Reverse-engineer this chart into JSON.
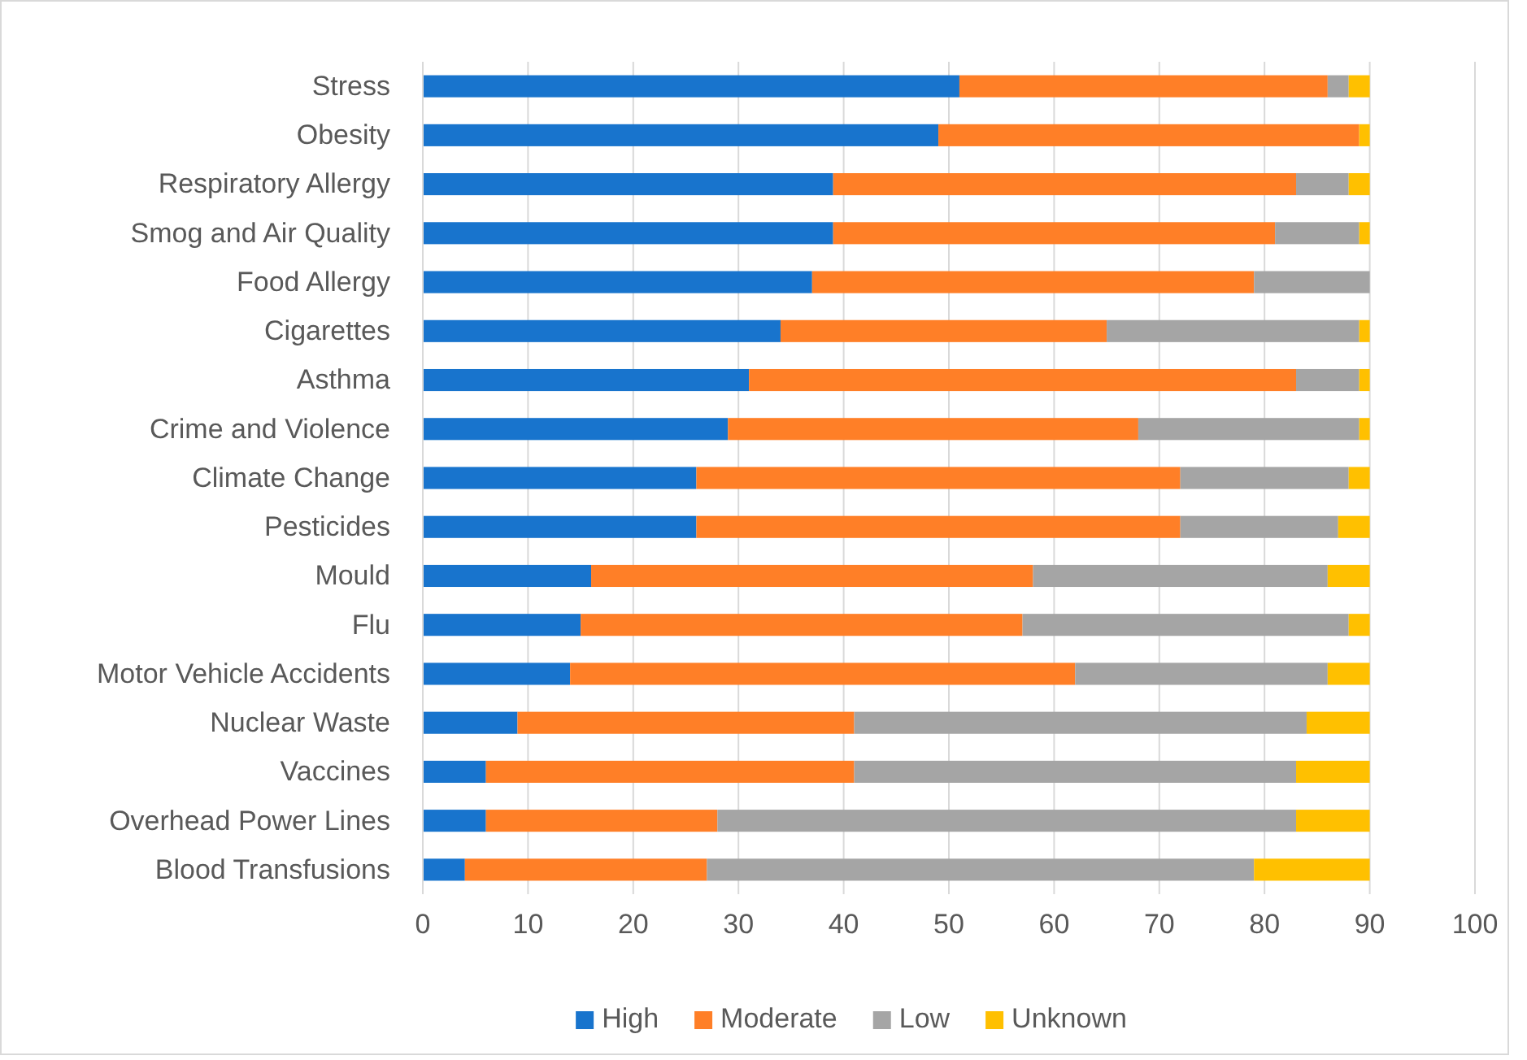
{
  "chart_data": {
    "type": "bar",
    "orientation": "horizontal",
    "stacked": true,
    "categories": [
      "Stress",
      "Obesity",
      "Respiratory Allergy",
      "Smog and Air Quality",
      "Food Allergy",
      "Cigarettes",
      "Asthma",
      "Crime and Violence",
      "Climate Change",
      "Pesticides ",
      "Mould",
      "Flu",
      "Motor Vehicle Accidents",
      "Nuclear Waste",
      "Vaccines",
      "Overhead Power Lines",
      "Blood Transfusions"
    ],
    "series": [
      {
        "name": "High",
        "color": "#1874cd",
        "values": [
          51,
          49,
          39,
          39,
          37,
          34,
          31,
          29,
          26,
          26,
          16,
          15,
          14,
          9,
          6,
          6,
          4
        ]
      },
      {
        "name": "Moderate",
        "color": "#ff7f27",
        "values": [
          35,
          40,
          44,
          42,
          42,
          31,
          52,
          39,
          46,
          46,
          42,
          42,
          48,
          32,
          35,
          22,
          23
        ]
      },
      {
        "name": "Low",
        "color": "#a5a5a5",
        "values": [
          2,
          0,
          5,
          8,
          11,
          24,
          6,
          21,
          16,
          15,
          28,
          31,
          24,
          43,
          42,
          55,
          52
        ]
      },
      {
        "name": "Unknown",
        "color": "#ffc000",
        "values": [
          2,
          1,
          2,
          1,
          0,
          1,
          1,
          1,
          2,
          3,
          4,
          2,
          4,
          6,
          7,
          7,
          11
        ]
      }
    ],
    "xlim": [
      0,
      100
    ],
    "xticks": [
      0,
      10,
      20,
      30,
      40,
      50,
      60,
      70,
      80,
      90,
      100
    ],
    "grid": "x",
    "legend": "bottom"
  }
}
